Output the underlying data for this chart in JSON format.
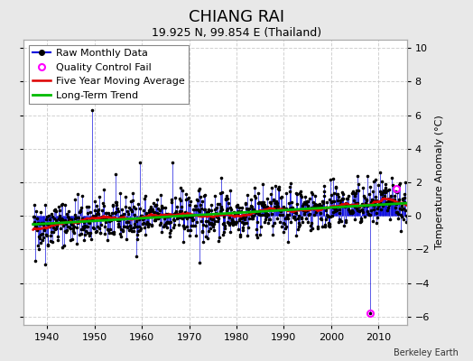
{
  "title": "CHIANG RAI",
  "subtitle": "19.925 N, 99.854 E (Thailand)",
  "ylabel": "Temperature Anomaly (°C)",
  "credit": "Berkeley Earth",
  "xlim": [
    1935,
    2016
  ],
  "ylim": [
    -6.5,
    10.5
  ],
  "yticks": [
    -6,
    -4,
    -2,
    0,
    2,
    4,
    6,
    8,
    10
  ],
  "xticks": [
    1940,
    1950,
    1960,
    1970,
    1980,
    1990,
    2000,
    2010
  ],
  "bg_color": "#e8e8e8",
  "plot_bg_color": "#ffffff",
  "raw_color": "#0000dd",
  "dot_color": "#000000",
  "moving_avg_color": "#dd0000",
  "trend_color": "#00bb00",
  "qc_fail_color": "#ff00ff",
  "grid_color": "#cccccc",
  "title_fontsize": 13,
  "subtitle_fontsize": 9,
  "legend_fontsize": 8,
  "start_year": 1937,
  "end_year": 2015,
  "trend_slope": 0.016,
  "trend_intercept": 0.1,
  "qc_fail_points": [
    [
      2008.25,
      -5.8
    ],
    [
      2013.75,
      1.6
    ]
  ],
  "spike_1950_year": 1949.5,
  "spike_1950_val": 6.3,
  "spike_down_1938_year": 1937.5,
  "spike_down_1938_val": -2.7,
  "spike_down_1940_year": 1939.5,
  "spike_down_1940_val": -2.9,
  "spike_1960_year": 1959.5,
  "spike_1960_val": 3.2,
  "spike_1967_year": 1966.5,
  "spike_1967_val": 3.2,
  "spike_1972_year": 1972.25,
  "spike_1972_val": -2.8,
  "spike_2009_year": 2008.25,
  "spike_2009_val": -5.8
}
